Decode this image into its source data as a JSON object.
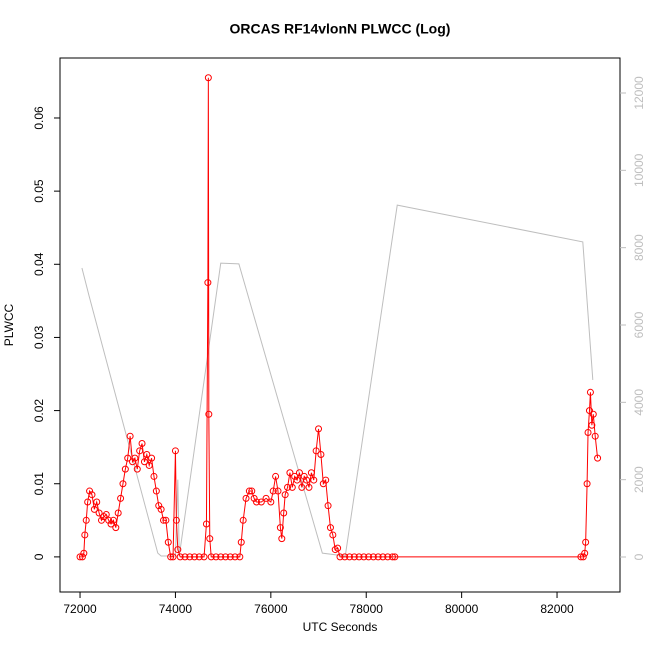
{
  "chart_data": {
    "type": "line",
    "title": "ORCAS RF14vlonN PLWCC (Log)",
    "x_label": "UTC Seconds",
    "y_label": "PLWCC",
    "xlim": [
      71580,
      83320
    ],
    "ylim": [
      -0.0048,
      0.0682
    ],
    "y2lim": [
      -905,
      12905
    ],
    "xticks": [
      72000,
      74000,
      76000,
      78000,
      80000,
      82000
    ],
    "yticks": [
      0.0,
      0.01,
      0.02,
      0.03,
      0.04,
      0.05,
      0.06
    ],
    "y2ticks": [
      0,
      2000,
      4000,
      6000,
      8000,
      10000,
      12000
    ],
    "series": [
      {
        "color": "#ff0000",
        "marker": "circle",
        "x": [
          72000,
          72050,
          72080,
          72100,
          72130,
          72160,
          72200,
          72250,
          72300,
          72350,
          72400,
          72450,
          72500,
          72550,
          72600,
          72650,
          72700,
          72750,
          72800,
          72850,
          72900,
          72950,
          73000,
          73050,
          73100,
          73150,
          73200,
          73250,
          73300,
          73350,
          73400,
          73450,
          73500,
          73550,
          73600,
          73650,
          73700,
          73750,
          73800,
          73850,
          73900,
          73950,
          74000,
          74020,
          74050,
          74100,
          74200,
          74300,
          74400,
          74500,
          74600,
          74650,
          74680,
          74690,
          74700,
          74720,
          74750,
          74850,
          74950,
          75050,
          75150,
          75250,
          75350,
          75380,
          75420,
          75480,
          75550,
          75600,
          75650,
          75700,
          75800,
          75900,
          76000,
          76050,
          76100,
          76150,
          76200,
          76230,
          76270,
          76300,
          76350,
          76400,
          76450,
          76500,
          76550,
          76600,
          76650,
          76700,
          76750,
          76800,
          76850,
          76900,
          76950,
          77000,
          77050,
          77100,
          77150,
          77200,
          77250,
          77300,
          77350,
          77400,
          77450,
          77550,
          77650,
          77750,
          77850,
          77950,
          78050,
          78150,
          78250,
          78350,
          78450,
          78550,
          78600,
          82500,
          82550,
          82580,
          82600,
          82630,
          82650,
          82680,
          82700,
          82730,
          82760,
          82800,
          82850
        ],
        "values": [
          0,
          0,
          0.0005,
          0.003,
          0.005,
          0.0075,
          0.009,
          0.0085,
          0.0065,
          0.0075,
          0.006,
          0.005,
          0.0055,
          0.0058,
          0.005,
          0.0045,
          0.005,
          0.004,
          0.006,
          0.008,
          0.01,
          0.012,
          0.0135,
          0.0165,
          0.013,
          0.0135,
          0.012,
          0.0145,
          0.0155,
          0.013,
          0.014,
          0.0125,
          0.0135,
          0.011,
          0.009,
          0.007,
          0.0065,
          0.005,
          0.005,
          0.002,
          0,
          0,
          0.0145,
          0.005,
          0.001,
          0,
          0,
          0,
          0,
          0,
          0,
          0.0045,
          0.0375,
          0.0655,
          0.0195,
          0.0025,
          0,
          0,
          0,
          0,
          0,
          0,
          0,
          0.002,
          0.005,
          0.008,
          0.009,
          0.009,
          0.008,
          0.0075,
          0.0075,
          0.008,
          0.0075,
          0.009,
          0.011,
          0.009,
          0.004,
          0.0025,
          0.006,
          0.0085,
          0.0095,
          0.0115,
          0.0095,
          0.011,
          0.0105,
          0.0115,
          0.0095,
          0.011,
          0.0105,
          0.0095,
          0.0115,
          0.0105,
          0.0145,
          0.0175,
          0.014,
          0.01,
          0.0105,
          0.007,
          0.004,
          0.003,
          0.001,
          0.0012,
          0,
          0,
          0,
          0,
          0,
          0,
          0,
          0,
          0,
          0,
          0,
          0,
          0,
          0,
          0,
          0.0005,
          0.002,
          0.01,
          0.017,
          0.02,
          0.0225,
          0.018,
          0.0195,
          0.0165,
          0.0135
        ]
      },
      {
        "color": "#bebebe",
        "axis": "y2",
        "x": [
          72040,
          72190,
          73630,
          73700,
          74000,
          74050,
          74080,
          74950,
          75330,
          77080,
          77560,
          78650,
          82540,
          82750
        ],
        "values": [
          7474,
          6750,
          100,
          25,
          30,
          2000,
          25,
          7600,
          7580,
          100,
          25,
          9100,
          8150,
          4580
        ]
      }
    ]
  }
}
